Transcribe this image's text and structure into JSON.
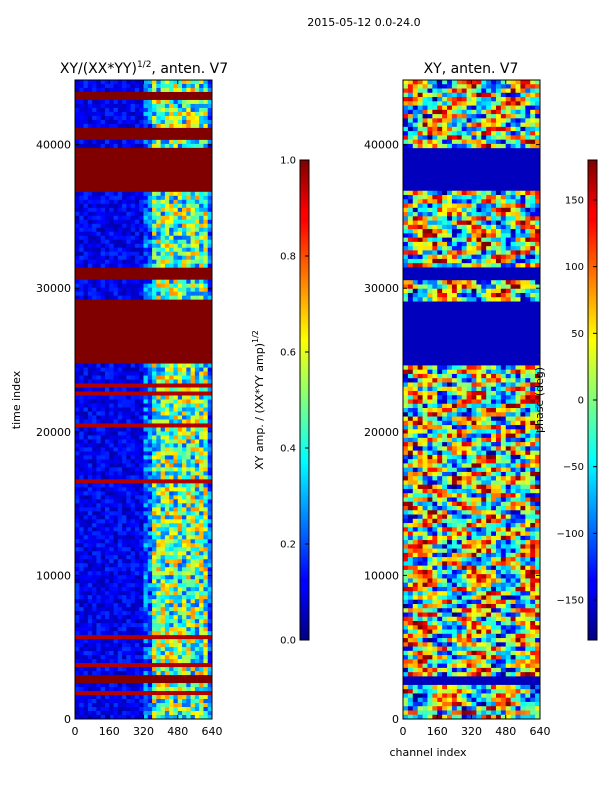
{
  "figure": {
    "suptitle": "2015-05-12 0.0-24.0"
  },
  "chart_data": [
    {
      "type": "heatmap",
      "title": "XY/(XX*YY)^{1/2}, anten. V7",
      "title_main": "XY/(XX*YY)",
      "title_sup": "1/2",
      "title_tail": ", anten. V7",
      "xlabel": "",
      "ylabel": "time index",
      "xlim": [
        0,
        640
      ],
      "ylim": [
        0,
        44500
      ],
      "xticks": [
        0,
        160,
        320,
        480,
        640
      ],
      "yticks": [
        0,
        10000,
        20000,
        30000,
        40000
      ],
      "colorbar": {
        "label": "XY amp. / (XX*YY amp)^{1/2}",
        "label_main": "XY amp. / (XX*YY amp)",
        "label_sup": "1/2",
        "range": [
          0.0,
          1.0
        ],
        "ticks": [
          "0.0",
          "0.2",
          "0.4",
          "0.6",
          "0.8",
          "1.0"
        ],
        "colormap": "jet"
      },
      "saturated_bands_time_index": [
        [
          2500,
          3100
        ],
        [
          24700,
          29200
        ],
        [
          30500,
          31300
        ],
        [
          36700,
          39800
        ],
        [
          40300,
          41200
        ],
        [
          43200,
          43600
        ]
      ],
      "bright_channel_range": [
        320,
        640
      ]
    },
    {
      "type": "heatmap",
      "title": "XY, anten. V7",
      "xlabel": "channel index",
      "ylabel": "",
      "xlim": [
        0,
        640
      ],
      "ylim": [
        0,
        44500
      ],
      "xticks": [
        0,
        160,
        320,
        480,
        640
      ],
      "yticks": [
        0,
        10000,
        20000,
        30000,
        40000
      ],
      "colorbar": {
        "label": "phase (deg)",
        "range": [
          -180,
          180
        ],
        "ticks": [
          "150",
          "100",
          "50",
          "0",
          "−50",
          "−100",
          "−150"
        ],
        "colormap": "jet"
      },
      "flat_bands_time_index": [
        [
          2500,
          3100
        ],
        [
          24700,
          29200
        ],
        [
          30500,
          31300
        ],
        [
          36700,
          39800
        ]
      ]
    }
  ]
}
